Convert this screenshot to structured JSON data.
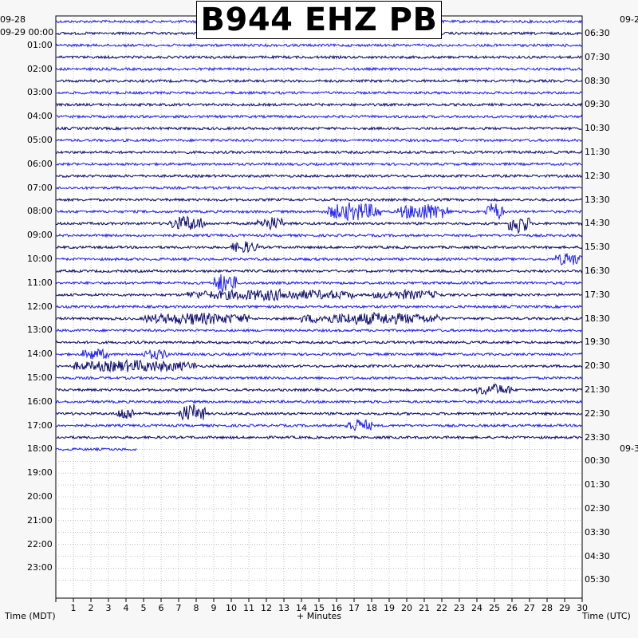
{
  "title": "B944 EHZ PB",
  "left_axis_label": "Time (MDT)",
  "right_axis_label": "Time (UTC)",
  "x_axis_label": "+ Minutes",
  "left_date_labels": [
    "09-28",
    "09-29 00:00"
  ],
  "right_date_labels": [
    "09-2",
    "09-3"
  ],
  "left_hour_labels": [
    "01:00",
    "02:00",
    "03:00",
    "04:00",
    "05:00",
    "06:00",
    "07:00",
    "08:00",
    "09:00",
    "10:00",
    "11:00",
    "12:00",
    "13:00",
    "14:00",
    "15:00",
    "16:00",
    "17:00",
    "18:00",
    "19:00",
    "20:00",
    "21:00",
    "22:00",
    "23:00"
  ],
  "right_hour_labels": [
    "06:30",
    "07:30",
    "08:30",
    "09:30",
    "10:30",
    "11:30",
    "12:30",
    "13:30",
    "14:30",
    "15:30",
    "16:30",
    "17:30",
    "18:30",
    "19:30",
    "20:30",
    "21:30",
    "22:30",
    "23:30",
    "00:30",
    "01:30",
    "02:30",
    "03:30",
    "04:30",
    "05:30"
  ],
  "colors": {
    "trace_a": "#1e1eff",
    "trace_b": "#0a0a6e",
    "grid": "#999999",
    "background": "#ffffff"
  },
  "chart_data": {
    "type": "helicorder",
    "title": "B944 EHZ PB",
    "xlabel": "+ Minutes",
    "x_ticks": [
      "1",
      "2",
      "3",
      "4",
      "5",
      "6",
      "7",
      "8",
      "9",
      "10",
      "11",
      "12",
      "13",
      "14",
      "15",
      "16",
      "17",
      "18",
      "19",
      "20",
      "21",
      "22",
      "23",
      "24",
      "25",
      "26",
      "27",
      "28",
      "29",
      "30"
    ],
    "xlim": [
      0,
      30
    ],
    "minutes_per_line": 30,
    "total_lines": 48,
    "lines_with_data": 37,
    "last_line_minutes": 4.6,
    "trace_colors": [
      "#1e1eff",
      "#0a0a6e"
    ],
    "activity_bursts": [
      {
        "line": 16,
        "minutes": [
          15.5,
          18.5
        ],
        "level": 0.9
      },
      {
        "line": 16,
        "minutes": [
          19.5,
          22.5
        ],
        "level": 0.8
      },
      {
        "line": 16,
        "minutes": [
          24.5,
          25.5
        ],
        "level": 0.9
      },
      {
        "line": 17,
        "minutes": [
          6.5,
          8.5
        ],
        "level": 0.7
      },
      {
        "line": 17,
        "minutes": [
          11.5,
          13.0
        ],
        "level": 0.6
      },
      {
        "line": 17,
        "minutes": [
          25.8,
          27.0
        ],
        "level": 1.0
      },
      {
        "line": 19,
        "minutes": [
          10.0,
          11.5
        ],
        "level": 0.5
      },
      {
        "line": 20,
        "minutes": [
          28.5,
          30.0
        ],
        "level": 0.6
      },
      {
        "line": 22,
        "minutes": [
          9.0,
          10.3
        ],
        "level": 1.0
      },
      {
        "line": 23,
        "minutes": [
          7.5,
          17.0
        ],
        "level": 0.45
      },
      {
        "line": 23,
        "minutes": [
          18.0,
          22.0
        ],
        "level": 0.35
      },
      {
        "line": 25,
        "minutes": [
          5.0,
          11.0
        ],
        "level": 0.5
      },
      {
        "line": 25,
        "minutes": [
          14.0,
          22.0
        ],
        "level": 0.5
      },
      {
        "line": 28,
        "minutes": [
          1.5,
          3.0
        ],
        "level": 0.5
      },
      {
        "line": 28,
        "minutes": [
          5.0,
          6.5
        ],
        "level": 0.4
      },
      {
        "line": 29,
        "minutes": [
          1.0,
          8.0
        ],
        "level": 0.5
      },
      {
        "line": 31,
        "minutes": [
          24.0,
          26.0
        ],
        "level": 0.5
      },
      {
        "line": 33,
        "minutes": [
          3.5,
          4.5
        ],
        "level": 0.6
      },
      {
        "line": 33,
        "minutes": [
          7.0,
          8.5
        ],
        "level": 0.9
      },
      {
        "line": 34,
        "minutes": [
          16.5,
          18.0
        ],
        "level": 0.6
      }
    ]
  }
}
